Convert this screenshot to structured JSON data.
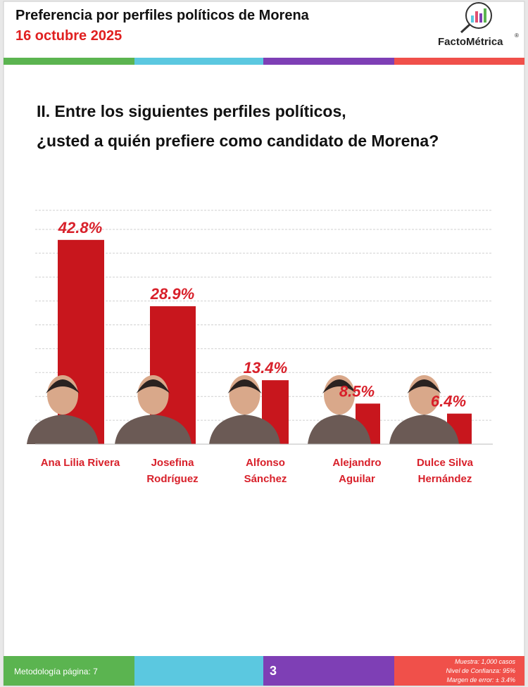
{
  "header": {
    "title": "Preferencia por perfiles políticos de Morena",
    "date": "16 octubre 2025",
    "logo": "FactoMétrica",
    "logo_mark": "®"
  },
  "question": [
    "II. Entre los siguientes perfiles políticos,",
    "¿usted a quién prefiere como candidato de Morena?"
  ],
  "chart_data": {
    "type": "bar",
    "categories": [
      [
        "Ana Lilia Rivera"
      ],
      [
        "Josefina",
        "Rodríguez"
      ],
      [
        "Alfonso",
        "Sánchez"
      ],
      [
        "Alejandro",
        "Aguilar"
      ],
      [
        "Dulce Silva",
        "Hernández"
      ]
    ],
    "values": [
      42.8,
      28.9,
      13.4,
      8.5,
      6.4
    ],
    "value_labels": [
      "42.8%",
      "28.9%",
      "13.4%",
      "8.5%",
      "6.4%"
    ],
    "color": "#c8161d",
    "ylim": [
      0,
      49
    ],
    "yticks": [
      0,
      5,
      10,
      15,
      20,
      25,
      30,
      35,
      40,
      45
    ],
    "grid": true
  },
  "footer": {
    "methodology": "Metodología página: 7",
    "page": "3",
    "notes": [
      "Muestra:  1,000 casos",
      "Nivel de Confianza: 95%",
      "Margen de error: ± 3.4%"
    ]
  }
}
